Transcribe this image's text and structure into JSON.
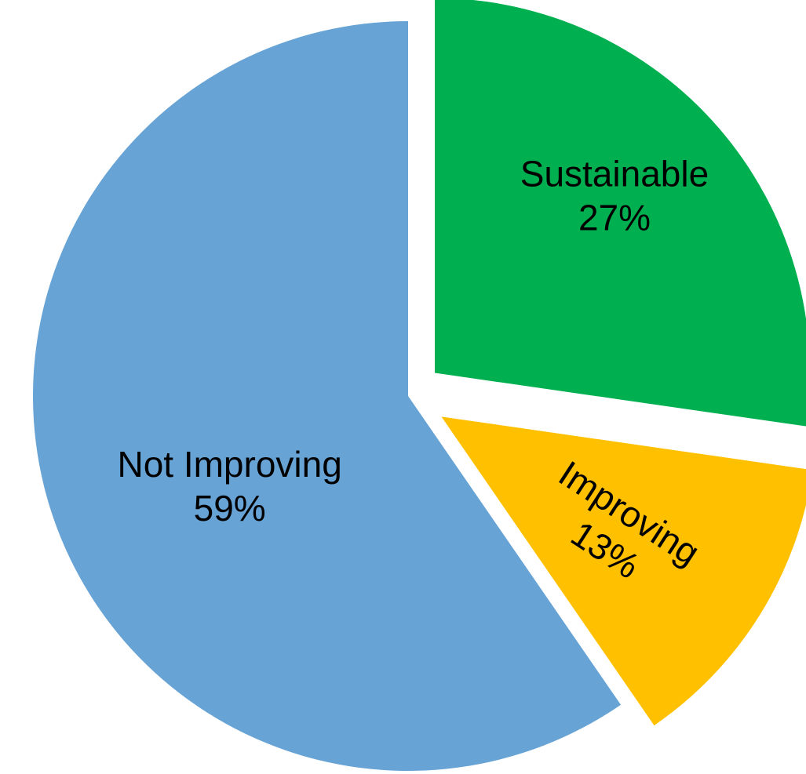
{
  "chart_data": {
    "type": "pie",
    "title": "",
    "start_angle_deg": 0,
    "direction": "clockwise",
    "exploded": true,
    "slices": [
      {
        "name": "Sustainable",
        "value": 27,
        "percent_label": "27%",
        "color": "#00B050"
      },
      {
        "name": "Improving",
        "value": 13,
        "percent_label": "13%",
        "color": "#FFC000"
      },
      {
        "name": "Not Improving",
        "value": 59,
        "percent_label": "59%",
        "color": "#67A3D5"
      }
    ],
    "legend": "none"
  }
}
